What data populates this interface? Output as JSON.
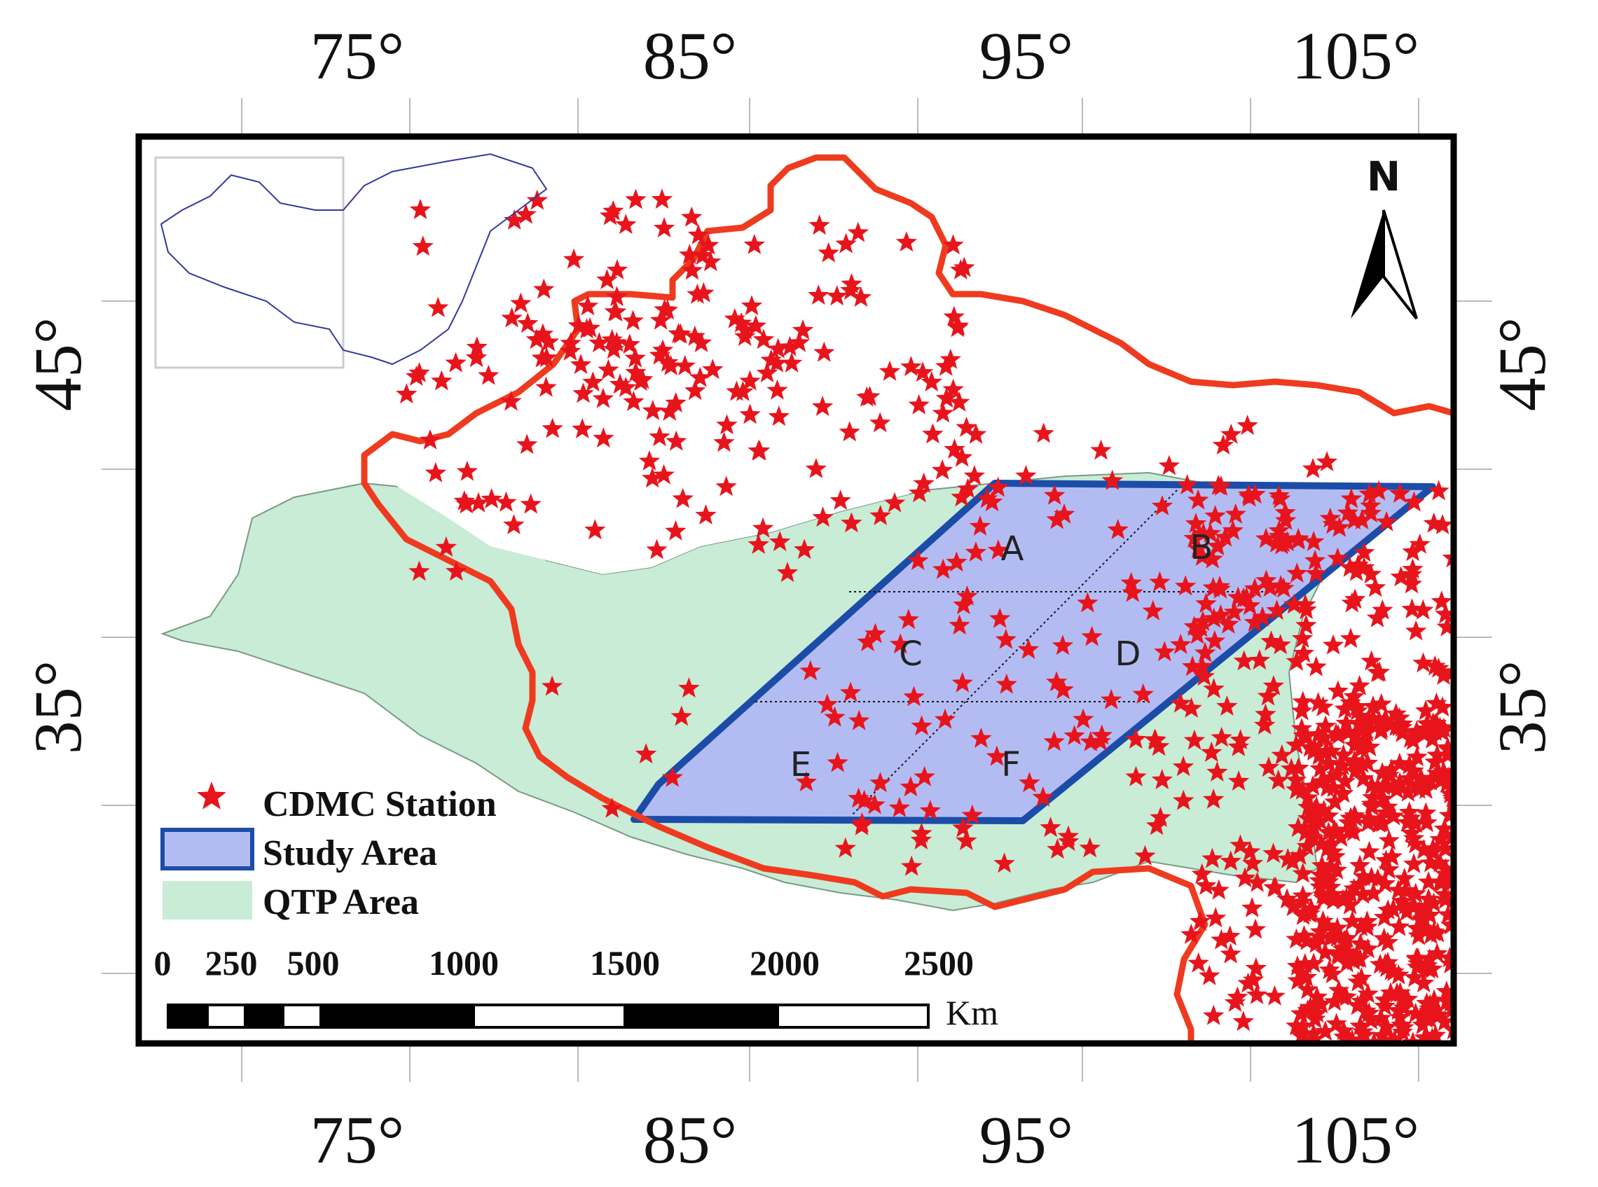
{
  "lon_labels": [
    "75°",
    "85°",
    "95°",
    "105°"
  ],
  "lat_labels": [
    "45°",
    "35°"
  ],
  "north_label": "N",
  "zones": [
    "A",
    "B",
    "C",
    "D",
    "E",
    "F"
  ],
  "legend": {
    "station": "CDMC Station",
    "study_area": "Study Area",
    "qtp_area": "QTP Area"
  },
  "scale_bar": {
    "ticks": [
      "0",
      "250",
      "500",
      "1000",
      "1500",
      "2000",
      "2500"
    ],
    "unit": "Km"
  },
  "colors": {
    "boundary": "#ee3b1f",
    "station": "#e8141c",
    "study_fill": "#b3bcf2",
    "study_stroke": "#1b4ca8",
    "qtp_fill": "#c8ecd6",
    "frame": "#000000"
  },
  "icons": [
    "north-arrow-icon",
    "star-icon"
  ]
}
